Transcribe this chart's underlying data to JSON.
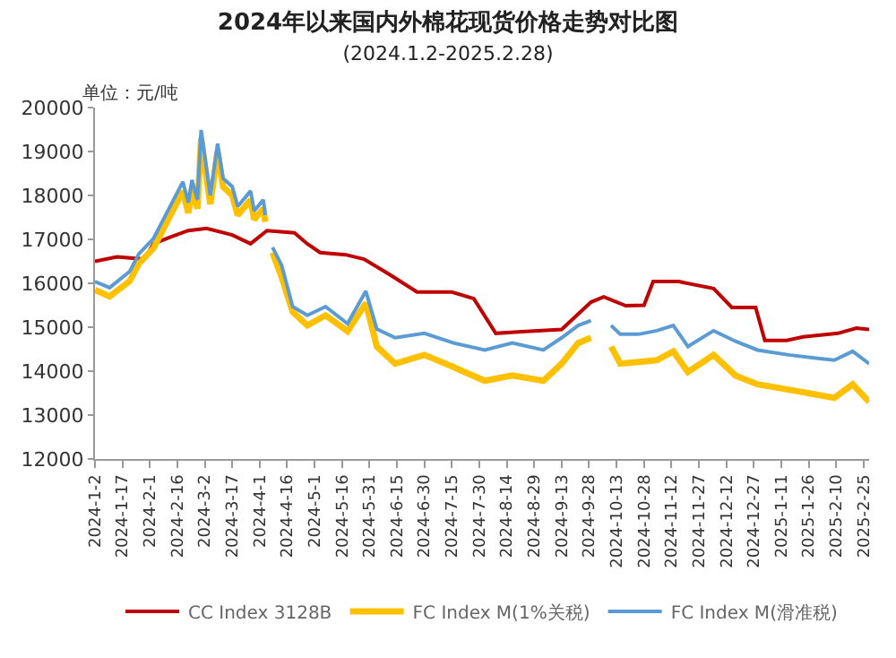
{
  "chart_data": {
    "type": "line",
    "title": "2024年以来国内外棉花现货价格走势对比图",
    "subtitle": "(2024.1.2-2025.2.28)",
    "ylabel": "单位：元/吨",
    "xlim": [
      "2024-01-02",
      "2025-02-28"
    ],
    "xticks": [
      {
        "value": "2024-01-02",
        "label": "2024-1-2"
      },
      {
        "value": "2024-01-17",
        "label": "2024-1-17"
      },
      {
        "value": "2024-02-01",
        "label": "2024-2-1"
      },
      {
        "value": "2024-02-16",
        "label": "2024-2-16"
      },
      {
        "value": "2024-03-02",
        "label": "2024-3-2"
      },
      {
        "value": "2024-03-17",
        "label": "2024-3-17"
      },
      {
        "value": "2024-04-01",
        "label": "2024-4-1"
      },
      {
        "value": "2024-04-16",
        "label": "2024-4-16"
      },
      {
        "value": "2024-05-01",
        "label": "2024-5-1"
      },
      {
        "value": "2024-05-16",
        "label": "2024-5-16"
      },
      {
        "value": "2024-05-31",
        "label": "2024-5-31"
      },
      {
        "value": "2024-06-15",
        "label": "2024-6-15"
      },
      {
        "value": "2024-06-30",
        "label": "2024-6-30"
      },
      {
        "value": "2024-07-15",
        "label": "2024-7-15"
      },
      {
        "value": "2024-07-30",
        "label": "2024-7-30"
      },
      {
        "value": "2024-08-14",
        "label": "2024-8-14"
      },
      {
        "value": "2024-08-29",
        "label": "2024-8-29"
      },
      {
        "value": "2024-09-13",
        "label": "2024-9-13"
      },
      {
        "value": "2024-09-28",
        "label": "2024-9-28"
      },
      {
        "value": "2024-10-13",
        "label": "2024-10-13"
      },
      {
        "value": "2024-10-28",
        "label": "2024-10-28"
      },
      {
        "value": "2024-11-12",
        "label": "2024-11-12"
      },
      {
        "value": "2024-11-27",
        "label": "2024-11-27"
      },
      {
        "value": "2024-12-12",
        "label": "2024-12-12"
      },
      {
        "value": "2024-12-27",
        "label": "2024-12-27"
      },
      {
        "value": "2025-01-11",
        "label": "2025-1-11"
      },
      {
        "value": "2025-01-26",
        "label": "2025-1-26"
      },
      {
        "value": "2025-02-10",
        "label": "2025-2-10"
      },
      {
        "value": "2025-02-25",
        "label": "2025-2-25"
      }
    ],
    "ylim": [
      12000,
      20000
    ],
    "yticks": [
      12000,
      13000,
      14000,
      15000,
      16000,
      17000,
      18000,
      19000,
      20000
    ],
    "grid": false,
    "legend": "bottom",
    "marker": "none",
    "line_style": "solid",
    "series": [
      {
        "name": "CC Index 3128B",
        "color": "#c00000",
        "x": [
          "2024-01-02",
          "2024-01-14",
          "2024-01-29",
          "2024-02-03",
          "2024-02-12",
          "2024-02-22",
          "2024-03-03",
          "2024-03-17",
          "2024-03-27",
          "2024-04-05",
          "2024-04-20",
          "2024-04-27",
          "2024-05-04",
          "2024-05-18",
          "2024-05-28",
          "2024-06-11",
          "2024-06-26",
          "2024-07-15",
          "2024-07-27",
          "2024-08-08",
          "2024-08-22",
          "2024-09-13",
          "2024-09-29",
          "2024-10-06",
          "2024-10-18",
          "2024-10-28",
          "2024-11-02",
          "2024-11-16",
          "2024-12-05",
          "2024-12-15",
          "2024-12-28",
          "2025-01-02",
          "2025-01-14",
          "2025-01-23",
          "2025-02-11",
          "2025-02-21",
          "2025-02-28"
        ],
        "values": [
          16500,
          16600,
          16550,
          16900,
          17050,
          17200,
          17250,
          17100,
          16900,
          17200,
          17150,
          16900,
          16700,
          16650,
          16550,
          16200,
          15800,
          15800,
          15650,
          14860,
          14900,
          14950,
          15570,
          15690,
          15490,
          15500,
          16040,
          16040,
          15880,
          15450,
          15450,
          14700,
          14700,
          14780,
          14860,
          14980,
          14950
        ]
      },
      {
        "name": "FC Index M(1%关税)",
        "color": "#ffc000",
        "x": [
          "2024-01-02",
          "2024-01-10",
          "2024-01-21",
          "2024-01-26",
          "2024-02-03",
          "2024-02-19",
          "2024-02-22",
          "2024-02-24",
          "2024-02-27",
          "2024-02-29",
          "2024-03-03",
          "2024-03-05",
          "2024-03-09",
          "2024-03-12",
          "2024-03-17",
          "2024-03-20",
          "2024-03-27",
          "2024-03-29",
          "2024-04-03",
          "2024-04-04",
          "2024-04-06",
          "2024-04-08",
          "2024-04-13",
          "2024-04-19",
          "2024-04-27",
          "2024-05-07",
          "2024-05-19",
          "2024-05-29",
          "2024-06-04",
          "2024-06-14",
          "2024-06-30",
          "2024-07-16",
          "2024-08-02",
          "2024-08-17",
          "2024-09-03",
          "2024-09-13",
          "2024-09-22",
          "2024-09-29",
          "2024-10-03",
          "2024-10-10",
          "2024-10-15",
          "2024-10-25",
          "2024-11-04",
          "2024-11-13",
          "2024-11-21",
          "2024-12-05",
          "2024-12-17",
          "2024-12-29",
          "2025-01-15",
          "2025-01-31",
          "2025-02-09",
          "2025-02-19",
          "2025-02-28"
        ],
        "values": [
          15850,
          15700,
          16050,
          16450,
          16800,
          18100,
          17600,
          18150,
          17700,
          19300,
          18400,
          17800,
          19000,
          18200,
          18000,
          17550,
          17900,
          17450,
          17700,
          17400,
          null,
          16700,
          16140,
          15350,
          15040,
          15270,
          14910,
          15550,
          14560,
          14170,
          14370,
          14090,
          13780,
          13900,
          13780,
          14170,
          14640,
          14760,
          null,
          14560,
          14170,
          14210,
          14250,
          14450,
          13980,
          14370,
          13900,
          13700,
          13580,
          13460,
          13390,
          13700,
          13300
        ]
      },
      {
        "name": "FC Index M(滑准税)",
        "color": "#5b9bd5",
        "x": [
          "2024-01-02",
          "2024-01-10",
          "2024-01-21",
          "2024-01-26",
          "2024-02-03",
          "2024-02-19",
          "2024-02-22",
          "2024-02-24",
          "2024-02-27",
          "2024-02-29",
          "2024-03-03",
          "2024-03-05",
          "2024-03-09",
          "2024-03-12",
          "2024-03-17",
          "2024-03-20",
          "2024-03-27",
          "2024-03-29",
          "2024-04-03",
          "2024-04-04",
          "2024-04-06",
          "2024-04-08",
          "2024-04-13",
          "2024-04-19",
          "2024-04-27",
          "2024-05-07",
          "2024-05-19",
          "2024-05-29",
          "2024-06-04",
          "2024-06-14",
          "2024-06-30",
          "2024-07-16",
          "2024-08-02",
          "2024-08-17",
          "2024-09-03",
          "2024-09-13",
          "2024-09-22",
          "2024-09-29",
          "2024-10-03",
          "2024-10-10",
          "2024-10-15",
          "2024-10-25",
          "2024-11-04",
          "2024-11-13",
          "2024-11-21",
          "2024-12-05",
          "2024-12-17",
          "2024-12-29",
          "2025-01-15",
          "2025-01-31",
          "2025-02-09",
          "2025-02-19",
          "2025-02-28"
        ],
        "values": [
          16040,
          15900,
          16270,
          16670,
          17020,
          18310,
          17840,
          18350,
          17900,
          19490,
          18590,
          18000,
          19180,
          18390,
          18200,
          17750,
          18100,
          17650,
          17900,
          17550,
          null,
          16820,
          16410,
          15470,
          15270,
          15470,
          15080,
          15820,
          14960,
          14760,
          14860,
          14640,
          14480,
          14640,
          14480,
          14760,
          15040,
          15150,
          null,
          15040,
          14840,
          14840,
          14920,
          15040,
          14560,
          14920,
          14680,
          14480,
          14370,
          14290,
          14250,
          14450,
          14170
        ]
      }
    ]
  }
}
